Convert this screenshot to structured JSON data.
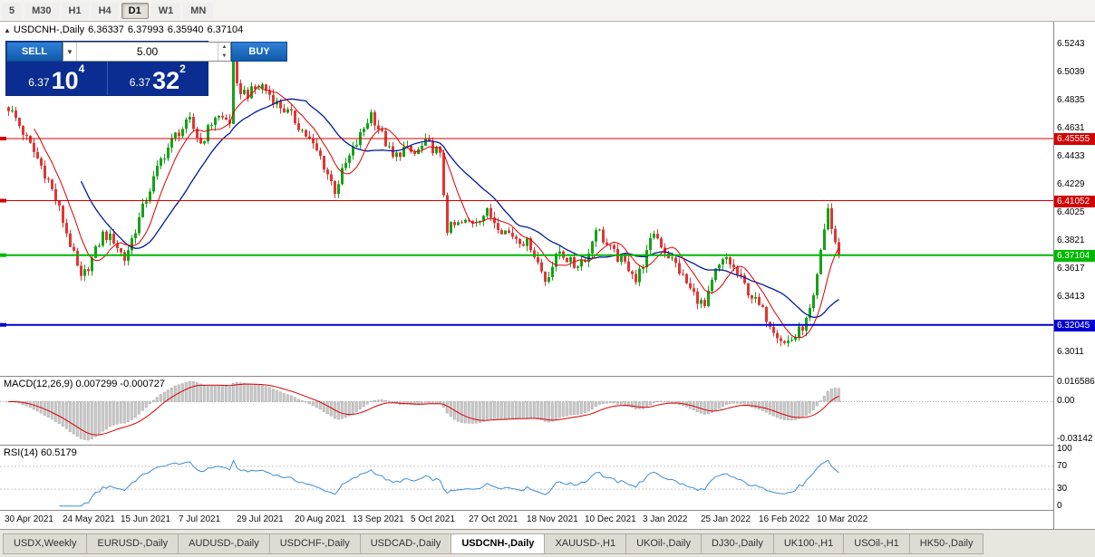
{
  "toolbar": {
    "timeframes": [
      "5",
      "M30",
      "H1",
      "H4",
      "D1",
      "W1",
      "MN"
    ],
    "active": "D1"
  },
  "header": {
    "collapse_icon": "▲",
    "symbol": "USDCNH-,Daily",
    "open": "6.36337",
    "high": "6.37993",
    "low": "6.35940",
    "close": "6.37104"
  },
  "trade_panel": {
    "sell_label": "SELL",
    "buy_label": "BUY",
    "volume": "5.00",
    "bid": {
      "prefix": "6.37",
      "big": "10",
      "sup": "4"
    },
    "ask": {
      "prefix": "6.37",
      "big": "32",
      "sup": "2"
    }
  },
  "price_scale": [
    "6.5243",
    "6.5039",
    "6.4835",
    "6.4631",
    "6.4433",
    "6.4229",
    "6.4025",
    "6.3821",
    "6.3617",
    "6.3413",
    "6.3209",
    "6.3011"
  ],
  "levels": [
    {
      "price": 6.45555,
      "label": "6.45555",
      "color": "#d20000",
      "width": 1
    },
    {
      "price": 6.41052,
      "label": "6.41052",
      "color": "#d20000",
      "width": 1
    },
    {
      "price": 6.37104,
      "label": "6.37104",
      "color": "#00b800",
      "width": 2
    },
    {
      "price": 6.32045,
      "label": "6.32045",
      "color": "#0000d2",
      "width": 2
    }
  ],
  "macd": {
    "label": "MACD(12,26,9) 0.007299 -0.000727",
    "scale_max": "0.016586",
    "scale_zero": "0.00",
    "scale_min": "-0.03142"
  },
  "rsi": {
    "label": "RSI(14) 60.5179",
    "scale_values": [
      100,
      70,
      30,
      0
    ],
    "guide_levels": [
      70,
      30
    ]
  },
  "tabs": {
    "active_index": 5,
    "items": [
      "USDX,Weekly",
      "EURUSD-,Daily",
      "AUDUSD-,Daily",
      "USDCHF-,Daily",
      "USDCAD-,Daily",
      "USDCNH-,Daily",
      "XAUUSD-,H1",
      "UKOil-,Daily",
      "DJ30-,Daily",
      "UK100-,H1",
      "USOil-,H1",
      "HK50-,Daily"
    ],
    "active_label": "USDCNH-,Daily"
  },
  "colors": {
    "up": "#17a117",
    "down": "#e13535",
    "ma_fast": "#dd0000",
    "ma_slow": "#001b9b",
    "macd_hist": "#c9c9c9",
    "macd_hist_border": "#9a9a9a",
    "macd_signal": "#dd0000",
    "rsi_line": "#3d8fd4",
    "accent_blue": "#0b2d91"
  },
  "chart_data": {
    "type": "candlestick",
    "symbol": "USDCNH-",
    "timeframe": "Daily",
    "ohlc_current": {
      "open": 6.36337,
      "high": 6.37993,
      "low": 6.3594,
      "close": 6.37104
    },
    "y_range": [
      6.292,
      6.535
    ],
    "bars": 230,
    "x_labels": [
      "30 Apr 2021",
      "24 May 2021",
      "15 Jun 2021",
      "7 Jul 2021",
      "29 Jul 2021",
      "20 Aug 2021",
      "13 Sep 2021",
      "5 Oct 2021",
      "27 Oct 2021",
      "18 Nov 2021",
      "10 Dec 2021",
      "3 Jan 2022",
      "25 Jan 2022",
      "16 Feb 2022",
      "10 Mar 2022"
    ],
    "bars_per_x_label": 16,
    "horizontal_levels": [
      6.45555,
      6.41052,
      6.37104,
      6.32045
    ],
    "price_anchors": [
      [
        0,
        6.478
      ],
      [
        2,
        6.47
      ],
      [
        5,
        6.455
      ],
      [
        8,
        6.441
      ],
      [
        11,
        6.425
      ],
      [
        14,
        6.404
      ],
      [
        17,
        6.379
      ],
      [
        20,
        6.353
      ],
      [
        23,
        6.368
      ],
      [
        26,
        6.386
      ],
      [
        29,
        6.382
      ],
      [
        32,
        6.368
      ],
      [
        35,
        6.39
      ],
      [
        38,
        6.412
      ],
      [
        42,
        6.44
      ],
      [
        46,
        6.458
      ],
      [
        50,
        6.468
      ],
      [
        53,
        6.452
      ],
      [
        57,
        6.472
      ],
      [
        61,
        6.468
      ],
      [
        62,
        6.512
      ],
      [
        63,
        6.492
      ],
      [
        66,
        6.488
      ],
      [
        70,
        6.494
      ],
      [
        74,
        6.481
      ],
      [
        78,
        6.472
      ],
      [
        82,
        6.458
      ],
      [
        86,
        6.442
      ],
      [
        90,
        6.418
      ],
      [
        93,
        6.437
      ],
      [
        96,
        6.452
      ],
      [
        100,
        6.474
      ],
      [
        103,
        6.458
      ],
      [
        106,
        6.441
      ],
      [
        109,
        6.448
      ],
      [
        112,
        6.444
      ],
      [
        115,
        6.452
      ],
      [
        118,
        6.447
      ],
      [
        119,
        6.442
      ],
      [
        121,
        6.39
      ],
      [
        124,
        6.393
      ],
      [
        128,
        6.396
      ],
      [
        132,
        6.402
      ],
      [
        136,
        6.39
      ],
      [
        140,
        6.384
      ],
      [
        144,
        6.378
      ],
      [
        148,
        6.353
      ],
      [
        152,
        6.374
      ],
      [
        156,
        6.363
      ],
      [
        160,
        6.372
      ],
      [
        162,
        6.392
      ],
      [
        165,
        6.378
      ],
      [
        168,
        6.369
      ],
      [
        172,
        6.36
      ],
      [
        173,
        6.352
      ],
      [
        176,
        6.372
      ],
      [
        178,
        6.388
      ],
      [
        181,
        6.374
      ],
      [
        184,
        6.364
      ],
      [
        188,
        6.346
      ],
      [
        192,
        6.333
      ],
      [
        195,
        6.359
      ],
      [
        198,
        6.369
      ],
      [
        201,
        6.357
      ],
      [
        204,
        6.345
      ],
      [
        208,
        6.33
      ],
      [
        211,
        6.318
      ],
      [
        214,
        6.307
      ],
      [
        217,
        6.312
      ],
      [
        220,
        6.323
      ],
      [
        222,
        6.338
      ],
      [
        224,
        6.372
      ],
      [
        226,
        6.406
      ],
      [
        227,
        6.39
      ],
      [
        229,
        6.371
      ]
    ],
    "indicators": [
      {
        "name": "MACD",
        "params": [
          12,
          26,
          9
        ],
        "current_values": [
          0.007299,
          -0.000727
        ],
        "scale": {
          "max": 0.016586,
          "zero": 0.0,
          "min": -0.03142
        }
      },
      {
        "name": "RSI",
        "params": [
          14
        ],
        "current_value": 60.5179,
        "guide_levels": [
          70,
          30
        ]
      }
    ]
  }
}
